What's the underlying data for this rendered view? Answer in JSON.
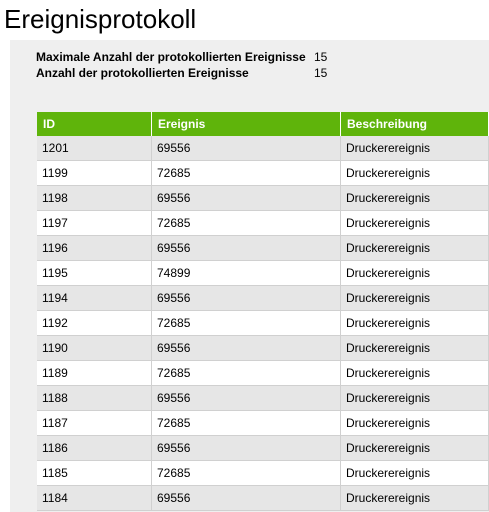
{
  "page": {
    "title": "Ereignisprotokoll"
  },
  "info": {
    "max_label": "Maximale Anzahl der protokollierten Ereignisse",
    "max_value": "15",
    "count_label": "Anzahl der protokollierten Ereignisse",
    "count_value": "15"
  },
  "table": {
    "headers": [
      "ID",
      "Ereignis",
      "Beschreibung"
    ],
    "rows": [
      [
        "1201",
        "69556",
        "Druckerereignis"
      ],
      [
        "1199",
        "72685",
        "Druckerereignis"
      ],
      [
        "1198",
        "69556",
        "Druckerereignis"
      ],
      [
        "1197",
        "72685",
        "Druckerereignis"
      ],
      [
        "1196",
        "69556",
        "Druckerereignis"
      ],
      [
        "1195",
        "74899",
        "Druckerereignis"
      ],
      [
        "1194",
        "69556",
        "Druckerereignis"
      ],
      [
        "1192",
        "72685",
        "Druckerereignis"
      ],
      [
        "1190",
        "69556",
        "Druckerereignis"
      ],
      [
        "1189",
        "72685",
        "Druckerereignis"
      ],
      [
        "1188",
        "69556",
        "Druckerereignis"
      ],
      [
        "1187",
        "72685",
        "Druckerereignis"
      ],
      [
        "1186",
        "69556",
        "Druckerereignis"
      ],
      [
        "1185",
        "72685",
        "Druckerereignis"
      ],
      [
        "1184",
        "69556",
        "Druckerereignis"
      ]
    ]
  },
  "colors": {
    "header_bg": "#5fb40b",
    "stripe": "#e6e6e6",
    "panel_bg": "#efefef"
  }
}
